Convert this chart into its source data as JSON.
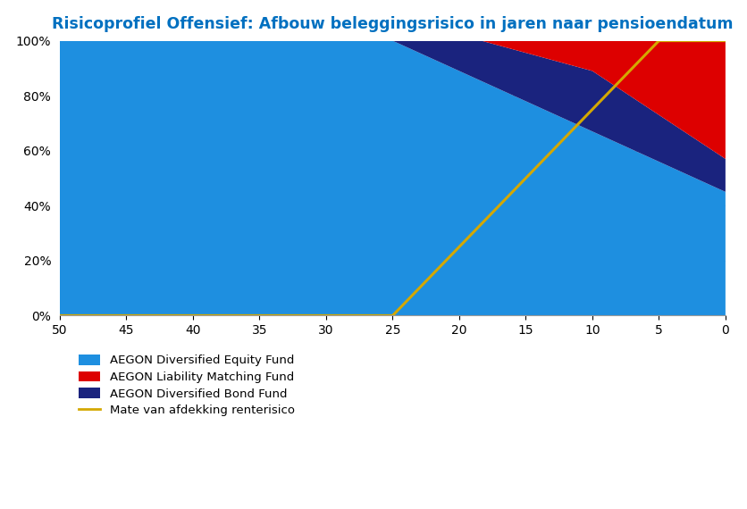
{
  "title": "Risicoprofiel Offensief: Afbouw beleggingsrisico in jaren naar pensioendatum",
  "title_color": "#0070C0",
  "x_ticks": [
    50,
    45,
    40,
    35,
    30,
    25,
    20,
    15,
    10,
    5,
    0
  ],
  "y_ticks": [
    0,
    20,
    40,
    60,
    80,
    100
  ],
  "y_tick_labels": [
    "0%",
    "20%",
    "40%",
    "60%",
    "80%",
    "100%"
  ],
  "color_equity": "#1E8FE0",
  "color_bond": "#1A237E",
  "color_liability": "#DD0000",
  "color_yellow": "#D4A800",
  "legend_labels": [
    "AEGON Diversified Equity Fund",
    "AEGON Liability Matching Fund",
    "AEGON Diversified Bond Fund",
    "Mate van afdekking renterisico"
  ],
  "background_color": "#FFFFFF",
  "grid_color": "#CCCCCC"
}
